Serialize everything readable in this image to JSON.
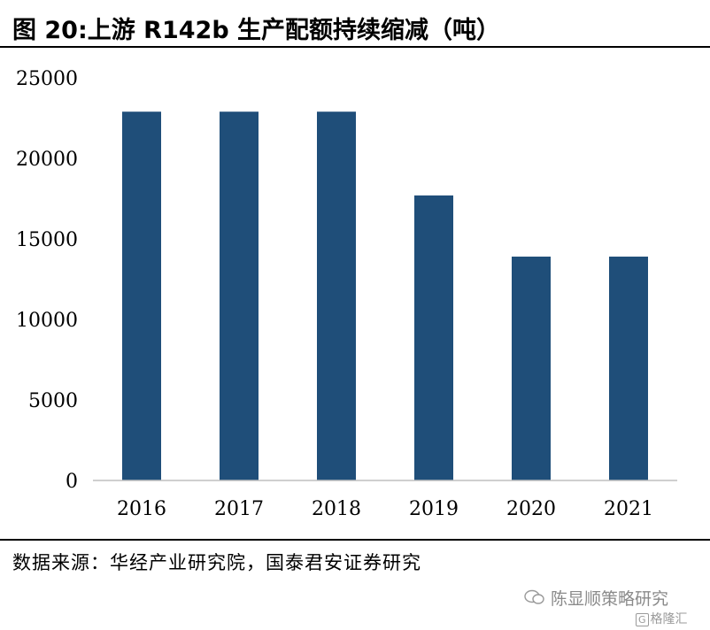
{
  "header": {
    "title": "图 20:上游 R142b 生产配额持续缩减（吨）"
  },
  "chart_data": {
    "type": "bar",
    "categories": [
      "2016",
      "2017",
      "2018",
      "2019",
      "2020",
      "2021"
    ],
    "values": [
      22900,
      22900,
      22900,
      17700,
      13900,
      13900
    ],
    "ylim": [
      0,
      25000
    ],
    "yticks": [
      0,
      5000,
      10000,
      15000,
      20000,
      25000
    ],
    "bar_color": "#1f4e79",
    "grid": false
  },
  "footer": {
    "source": "数据来源：华经产业研究院，国泰君安证券研究"
  },
  "watermark": {
    "name": "陈显顺策略研究",
    "logo": "格隆汇",
    "logo_icon": "G"
  }
}
